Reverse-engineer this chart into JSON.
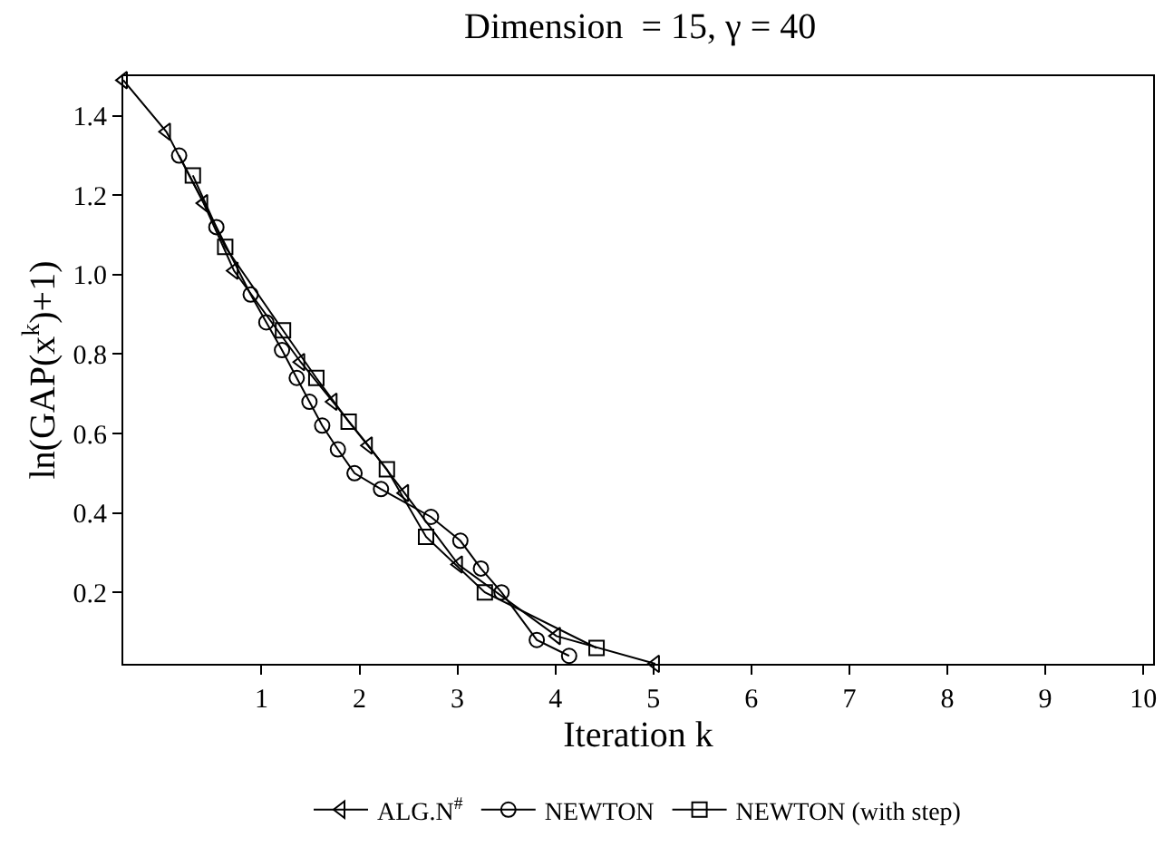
{
  "chart_data": {
    "type": "line",
    "title": "Dimension  = 15, γ = 40",
    "xlabel": "Iteration k",
    "ylabel": "ln(GAP(x$^{k}$)+1)",
    "xlim": [
      -0.41,
      10.1
    ],
    "xticks": [
      1,
      2,
      3,
      4,
      5,
      6,
      7,
      8,
      9,
      10
    ],
    "ylim": [
      0.02,
      1.5
    ],
    "yticks": [
      0.2,
      0.4,
      0.6,
      0.8,
      {
        "value": 1.0,
        "label": "1.0"
      },
      1.2,
      1.4
    ],
    "legend": "bottom",
    "series": [
      {
        "name": "ALG.N$^{#}$",
        "color": "#000000",
        "marker": "triangle",
        "x": [
          -0.41,
          0.03,
          0.41,
          0.72,
          1.4,
          1.73,
          2.09,
          2.46,
          3.01,
          4.01,
          5.02
        ],
        "values": [
          1.49,
          1.36,
          1.18,
          1.01,
          0.78,
          0.68,
          0.57,
          0.45,
          0.27,
          0.09,
          0.02
        ]
      },
      {
        "name": "NEWTON",
        "color": "#000000",
        "marker": "circle",
        "x": [
          0.16,
          0.54,
          0.89,
          1.05,
          1.21,
          1.36,
          1.49,
          1.62,
          1.78,
          1.95,
          2.22,
          2.73,
          3.03,
          3.24,
          3.45,
          3.81,
          4.14
        ],
        "values": [
          1.3,
          1.12,
          0.95,
          0.88,
          0.81,
          0.74,
          0.68,
          0.62,
          0.56,
          0.5,
          0.46,
          0.39,
          0.33,
          0.26,
          0.2,
          0.08,
          0.04
        ]
      },
      {
        "name": "NEWTON (with step)",
        "color": "#000000",
        "marker": "square",
        "x": [
          0.3,
          0.63,
          1.22,
          1.56,
          1.89,
          2.28,
          2.68,
          3.28,
          4.42
        ],
        "values": [
          1.25,
          1.07,
          0.86,
          0.74,
          0.63,
          0.51,
          0.34,
          0.2,
          0.06
        ]
      }
    ]
  }
}
